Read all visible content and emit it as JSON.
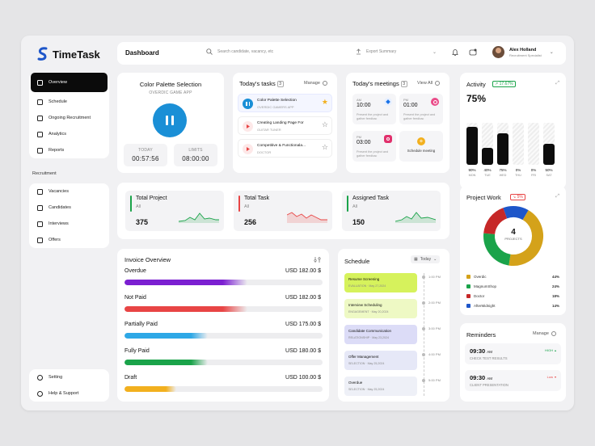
{
  "app": {
    "name": "TimeTask"
  },
  "sidebar": {
    "items": [
      {
        "label": "Overview"
      },
      {
        "label": "Schedule"
      },
      {
        "label": "Ongoing Recruitment"
      },
      {
        "label": "Analytics"
      },
      {
        "label": "Reports"
      }
    ],
    "section_label": "Recruitment",
    "recruitment_items": [
      {
        "label": "Vacancies"
      },
      {
        "label": "Candidates"
      },
      {
        "label": "Interviews"
      },
      {
        "label": "Offers"
      }
    ],
    "bottom_items": [
      {
        "label": "Setting"
      },
      {
        "label": "Help & Support"
      }
    ]
  },
  "header": {
    "title": "Dashboard",
    "search_placeholder": "Search candidate, vacancy, etc",
    "export_label": "Export Summary",
    "user_name": "Alex Holland",
    "user_role": "Recruitment Specialist"
  },
  "palette_card": {
    "title": "Color Palette Selection",
    "subtitle": "OVERDIC GAME APP",
    "today_label": "TODAY",
    "today_value": "00:57:56",
    "limits_label": "LIMITS",
    "limits_value": "08:00:00"
  },
  "tasks_card": {
    "title": "Today's tasks",
    "count": "3",
    "manage_label": "Manage",
    "tasks": [
      {
        "title": "Color Palette Selection",
        "sub": "OVERDIC GAMERS APP",
        "color": "#1a8fd6",
        "starred": true
      },
      {
        "title": "Creating Landing Page For",
        "sub": "GUITAR TUNER",
        "color": "#e84545",
        "starred": false
      },
      {
        "title": "Competitive & Functionala...",
        "sub": "DOCTOR",
        "color": "#e84545",
        "starred": false
      }
    ]
  },
  "meetings_card": {
    "title": "Today's meetings",
    "count": "3",
    "view_all_label": "View All",
    "meetings": [
      {
        "ampm": "AM",
        "time": "10:00",
        "desc": "Present the project and gather feedbac",
        "app_color": "#1a73e8"
      },
      {
        "ampm": "PM",
        "time": "01:00",
        "desc": "Present the project and gather feedbac",
        "app_color": "#ea4c89"
      },
      {
        "ampm": "PM",
        "time": "03:00",
        "desc": "Present the project and gather feedbac",
        "app_color": "#e1306c"
      }
    ],
    "schedule_label": "Schedule meeting"
  },
  "activity_card": {
    "title": "Activity",
    "delta": "17.67%",
    "value": "75%",
    "bars": [
      {
        "pct": "90%",
        "day": "MON",
        "value": 90
      },
      {
        "pct": "40%",
        "day": "TUE",
        "value": 40
      },
      {
        "pct": "75%",
        "day": "WED",
        "value": 75
      },
      {
        "pct": "0%",
        "day": "THU",
        "value": 0
      },
      {
        "pct": "0%",
        "day": "FRI",
        "value": 0
      },
      {
        "pct": "50%",
        "day": "SAT",
        "value": 50
      }
    ]
  },
  "stats": [
    {
      "title": "Total Project",
      "sub": "All",
      "value": "375",
      "color": "#1aa34a"
    },
    {
      "title": "Total Task",
      "sub": "All",
      "value": "256",
      "color": "#e84545"
    },
    {
      "title": "Assigned Task",
      "sub": "All",
      "value": "150",
      "color": "#1aa34a"
    }
  ],
  "project_card": {
    "title": "Project Work",
    "delta": "5%",
    "center_value": "4",
    "center_label": "PROJECTS",
    "legend": [
      {
        "name": "Overdic",
        "pct": "44%",
        "value": 44,
        "color": "#d4a21a"
      },
      {
        "name": "MagnumShop",
        "pct": "24%",
        "value": 24,
        "color": "#1aa34a"
      },
      {
        "name": "Doctor",
        "pct": "18%",
        "value": 18,
        "color": "#c62828"
      },
      {
        "name": "AfterMidnight",
        "pct": "14%",
        "value": 14,
        "color": "#1e56c9"
      }
    ]
  },
  "invoice_card": {
    "title": "Invoice Overview",
    "rows": [
      {
        "label": "Overdue",
        "amount": "USD 182.00 $",
        "fill": 0.62,
        "color": "#7b1fd1"
      },
      {
        "label": "Not Paid",
        "amount": "USD 182.00 $",
        "fill": 0.62,
        "color": "#e84545"
      },
      {
        "label": "Partially Paid",
        "amount": "USD 175.00 $",
        "fill": 0.42,
        "color": "#2ea8e6"
      },
      {
        "label": "Fully Paid",
        "amount": "USD 180.00 $",
        "fill": 0.42,
        "color": "#1aa34a"
      },
      {
        "label": "Draft",
        "amount": "USD 100.00 $",
        "fill": 0.26,
        "color": "#f2b01e"
      }
    ]
  },
  "schedule_card": {
    "title": "Schedule",
    "filter_label": "Today",
    "items": [
      {
        "title": "Resume Screening",
        "sub": "EVALUATION · May 27,2024",
        "bg": "#d6f25c"
      },
      {
        "title": "Interview Scheduling",
        "sub": "ENGAGEMENT · May 20,2024",
        "bg": "#eef9c4"
      },
      {
        "title": "Candidate Communication",
        "sub": "RELATIONSHIP · May 23,2024",
        "bg": "#dcdcf7"
      },
      {
        "title": "Offer Management",
        "sub": "SELECTION · May 25,2024",
        "bg": "#e6e8f7"
      },
      {
        "title": "Overdue",
        "sub": "SELECTION · May 25,2024",
        "bg": "#eef0f7"
      }
    ],
    "times": [
      "1:00 PM",
      "2:00 PM",
      "3:00 PM",
      "4:00 PM",
      "5:00 PM"
    ]
  },
  "reminders_card": {
    "title": "Reminders",
    "manage_label": "Manage",
    "items": [
      {
        "time": "09:30",
        "ampm": "AM",
        "desc": "CHECK TEST RESULTS",
        "priority": "HIGH",
        "color": "#1aa34a"
      },
      {
        "time": "09:30",
        "ampm": "AM",
        "desc": "CLIENT PRESENTATION",
        "priority": "Low",
        "color": "#e84545"
      }
    ]
  }
}
